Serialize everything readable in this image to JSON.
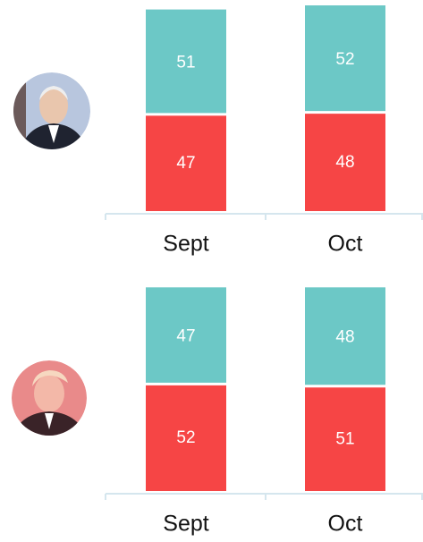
{
  "chart_data": [
    {
      "type": "bar",
      "stacked": true,
      "categories": [
        "Sept",
        "Oct"
      ],
      "ylim": [
        0,
        100
      ],
      "series": [
        {
          "color": "#f64545",
          "values": [
            47,
            48
          ]
        },
        {
          "color": "#6cc8c6",
          "values": [
            51,
            52
          ]
        }
      ]
    },
    {
      "type": "bar",
      "stacked": true,
      "categories": [
        "Sept",
        "Oct"
      ],
      "ylim": [
        0,
        100
      ],
      "series": [
        {
          "color": "#f64545",
          "values": [
            52,
            51
          ]
        },
        {
          "color": "#6cc8c6",
          "values": [
            47,
            48
          ]
        }
      ]
    }
  ]
}
